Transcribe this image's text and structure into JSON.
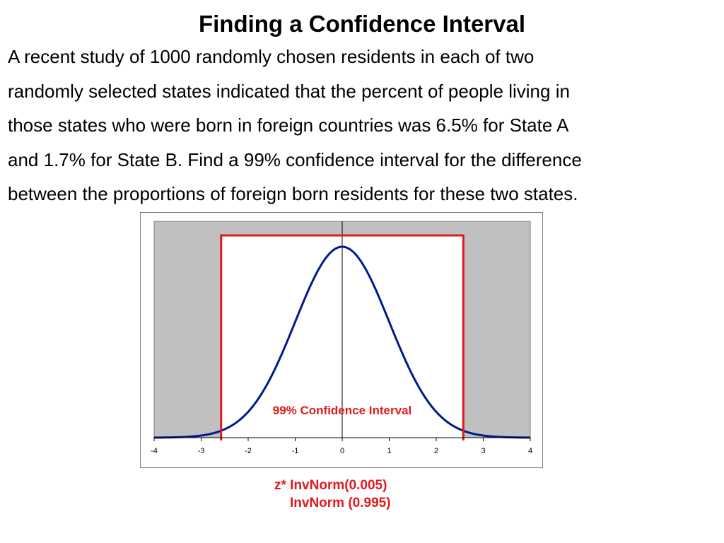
{
  "slide": {
    "title": "Finding a Confidence Interval",
    "body_lines": [
      "A recent study of 1000 randomly chosen residents in  each of two",
      "randomly selected states indicated that the percent of people living in",
      "those states who were born in foreign countries was 6.5% for State A",
      "and 1.7% for State B. Find a 99% confidence interval for the difference",
      "between the proportions of foreign born residents for these two states."
    ],
    "formula_lines": [
      "z* InvNorm(0.005)",
      "InvNorm (0.995)"
    ]
  },
  "colors": {
    "curve": "#001a8c",
    "interval": "#e0191e",
    "tail_shade": "#c0c0c0",
    "plot_border": "#7f7f7f"
  },
  "chart_data": {
    "type": "area",
    "description_of_marks": "standard normal density curve, area between critical values unshaded, tails shaded gray",
    "xlim": [
      -4,
      4
    ],
    "x_ticks": [
      -4,
      -3,
      -2,
      -1,
      0,
      1,
      2,
      3,
      4
    ],
    "x_tick_labels": [
      "-4",
      "-3",
      "-2",
      "-1",
      "0",
      "1",
      "2",
      "3",
      "4"
    ],
    "critical_values": [
      -2.576,
      2.576
    ],
    "confidence_level": 0.99,
    "annotation": "99% Confidence Interval",
    "grid": false,
    "legend": "none"
  }
}
